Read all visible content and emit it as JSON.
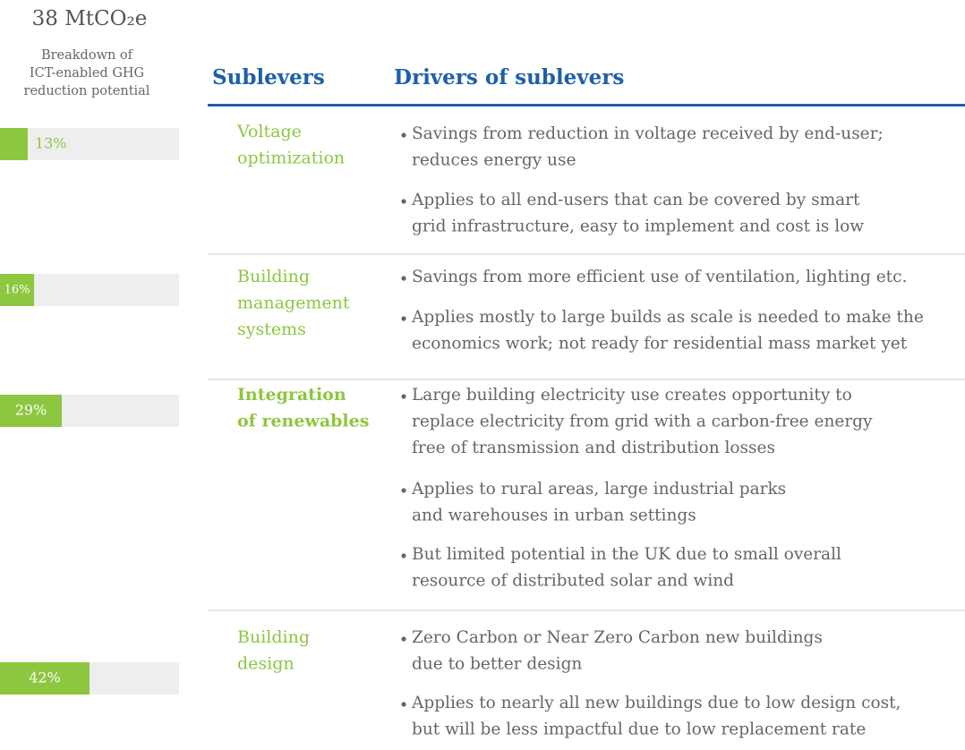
{
  "header": {
    "total": "38 MtCO₂e",
    "subtitle": [
      "Breakdown of",
      "ICT-enabled GHG",
      "reduction potential"
    ],
    "columns": [
      "Sublevers",
      "Drivers of sublevers"
    ]
  },
  "rows": [
    {
      "value": 13,
      "value_label": "13%",
      "sublever": [
        "Voltage",
        "optimization"
      ],
      "bold": false,
      "drivers": [
        [
          "Savings from reduction in voltage received by end-user;",
          "reduces energy use"
        ],
        [
          "Applies to all end-users that can be covered by smart",
          "grid infrastructure, easy to implement and cost is low"
        ]
      ]
    },
    {
      "value": 16,
      "value_label": "16%",
      "sublever": [
        "Building",
        "management",
        "systems"
      ],
      "bold": false,
      "drivers": [
        [
          "Savings from more efficient use of ventilation, lighting etc."
        ],
        [
          "Applies mostly to large builds as scale is needed to make the",
          "economics work; not ready for residential mass market yet"
        ]
      ]
    },
    {
      "value": 29,
      "value_label": "29%",
      "sublever": [
        "Integration",
        "of renewables"
      ],
      "bold": true,
      "drivers": [
        [
          "Large building electricity use creates opportunity to",
          "replace electricity from grid with a carbon-free energy",
          "free of transmission and distribution losses"
        ],
        [
          "Applies to rural areas, large industrial parks",
          "and warehouses in urban settings"
        ],
        [
          "But limited potential in the UK due to small overall",
          "resource of distributed solar and wind"
        ]
      ]
    },
    {
      "value": 42,
      "value_label": "42%",
      "sublever": [
        "Building",
        "design"
      ],
      "bold": false,
      "drivers": [
        [
          "Zero Carbon or Near Zero Carbon new buildings",
          "due to better design"
        ],
        [
          "Applies to nearly all new buildings due to low design cost,",
          "but will be less impactful due to low replacement rate"
        ]
      ]
    }
  ]
}
